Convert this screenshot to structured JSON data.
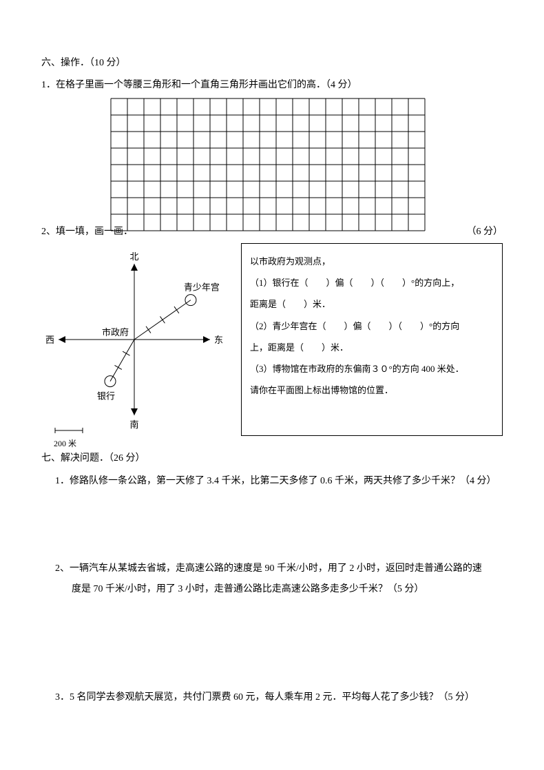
{
  "section6": {
    "title": "六、操作．（10 分）",
    "q1": {
      "text": "1．在格子里画一个等腰三角形和一个直角三角形并画出它们的高．（4 分）",
      "grid": {
        "cols": 19,
        "rows": 8,
        "cell_size": 24,
        "stroke": "#000000",
        "stroke_width": 1
      }
    },
    "q2": {
      "label": "2、填一填，画一画．",
      "score": "（6 分）",
      "compass": {
        "north": "北",
        "south": "南",
        "east": "东",
        "west": "西",
        "center": "市政府",
        "bank": "银行",
        "youth": "青少年宫",
        "scale_label": "200 米",
        "axis_half": 110,
        "youth_angle_deg": 35,
        "youth_r": 100,
        "bank_angle_deg": 240,
        "bank_r": 70,
        "tick_len": 6,
        "stroke": "#000000"
      },
      "box": {
        "intro": "以市政府为观测点，",
        "line1": "（1）银行在（　　）偏（　　）（　　）°的方向上，",
        "line1b": "距离是（　　）米．",
        "line2": "（2）青少年宫在（　　）偏（　　）（　　）°的方向",
        "line2b": "上，距离是（　　）米．",
        "line3": "（3）博物馆在市政府的东偏南３０°的方向 400 米处．",
        "line3b": "请你在平面图上标出博物馆的位置．"
      }
    }
  },
  "section7": {
    "title": "七、解决问题．（26 分）",
    "q1": "1．修路队修一条公路，第一天修了 3.4 千米，比第二天多修了 0.6 千米，两天共修了多少千米？（4 分）",
    "q2a": "2、一辆汽车从某城去省城，走高速公路的速度是 90 千米/小时，用了 2 小时，返回时走普通公路的速",
    "q2b": "度是 70 千米/小时，用了 3 小时，走普通公路比走高速公路多走多少千米？（5 分）",
    "q3": "3．5 名同学去参观航天展览，共付门票费 60 元，每人乘车用 2 元．平均每人花了多少钱？（5 分）"
  }
}
